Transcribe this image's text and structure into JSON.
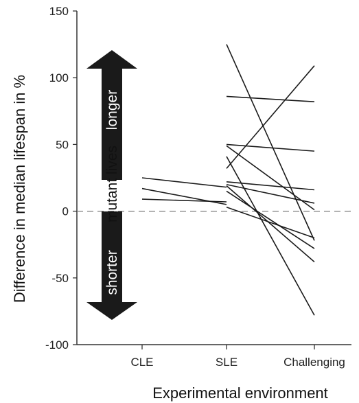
{
  "chart_data": {
    "type": "line",
    "xlabel": "Experimental environment",
    "ylabel": "Difference in median lifespan in %",
    "categories": [
      "CLE",
      "SLE",
      "Challenging"
    ],
    "ylim": [
      -100,
      150
    ],
    "yticks": [
      150,
      100,
      50,
      0,
      -50,
      -100
    ],
    "reference_line": {
      "y": 0,
      "style": "dashed"
    },
    "segments_cle_sle": [
      {
        "values": [
          25,
          18,
          null
        ]
      },
      {
        "values": [
          17,
          5,
          null
        ]
      },
      {
        "values": [
          9,
          7,
          null
        ]
      }
    ],
    "series": [
      {
        "values": [
          null,
          125,
          -22
        ]
      },
      {
        "values": [
          null,
          86,
          82
        ]
      },
      {
        "values": [
          null,
          50,
          45
        ]
      },
      {
        "values": [
          null,
          49,
          1
        ]
      },
      {
        "values": [
          null,
          41,
          -78
        ]
      },
      {
        "values": [
          null,
          32,
          109
        ]
      },
      {
        "values": [
          null,
          22,
          16
        ]
      },
      {
        "values": [
          null,
          20,
          6
        ]
      },
      {
        "values": [
          null,
          19,
          -38
        ]
      },
      {
        "values": [
          null,
          15,
          -28
        ]
      },
      {
        "values": [
          null,
          3,
          -20
        ]
      }
    ],
    "annotations": {
      "up_primary": "longer",
      "up_secondary": "mutant lives",
      "down_label": "shorter"
    },
    "colors": {
      "line": "#1a1a1a",
      "arrow": "#1a1a1a",
      "axis": "#333333",
      "zero_line": "#7a7a7a"
    }
  }
}
